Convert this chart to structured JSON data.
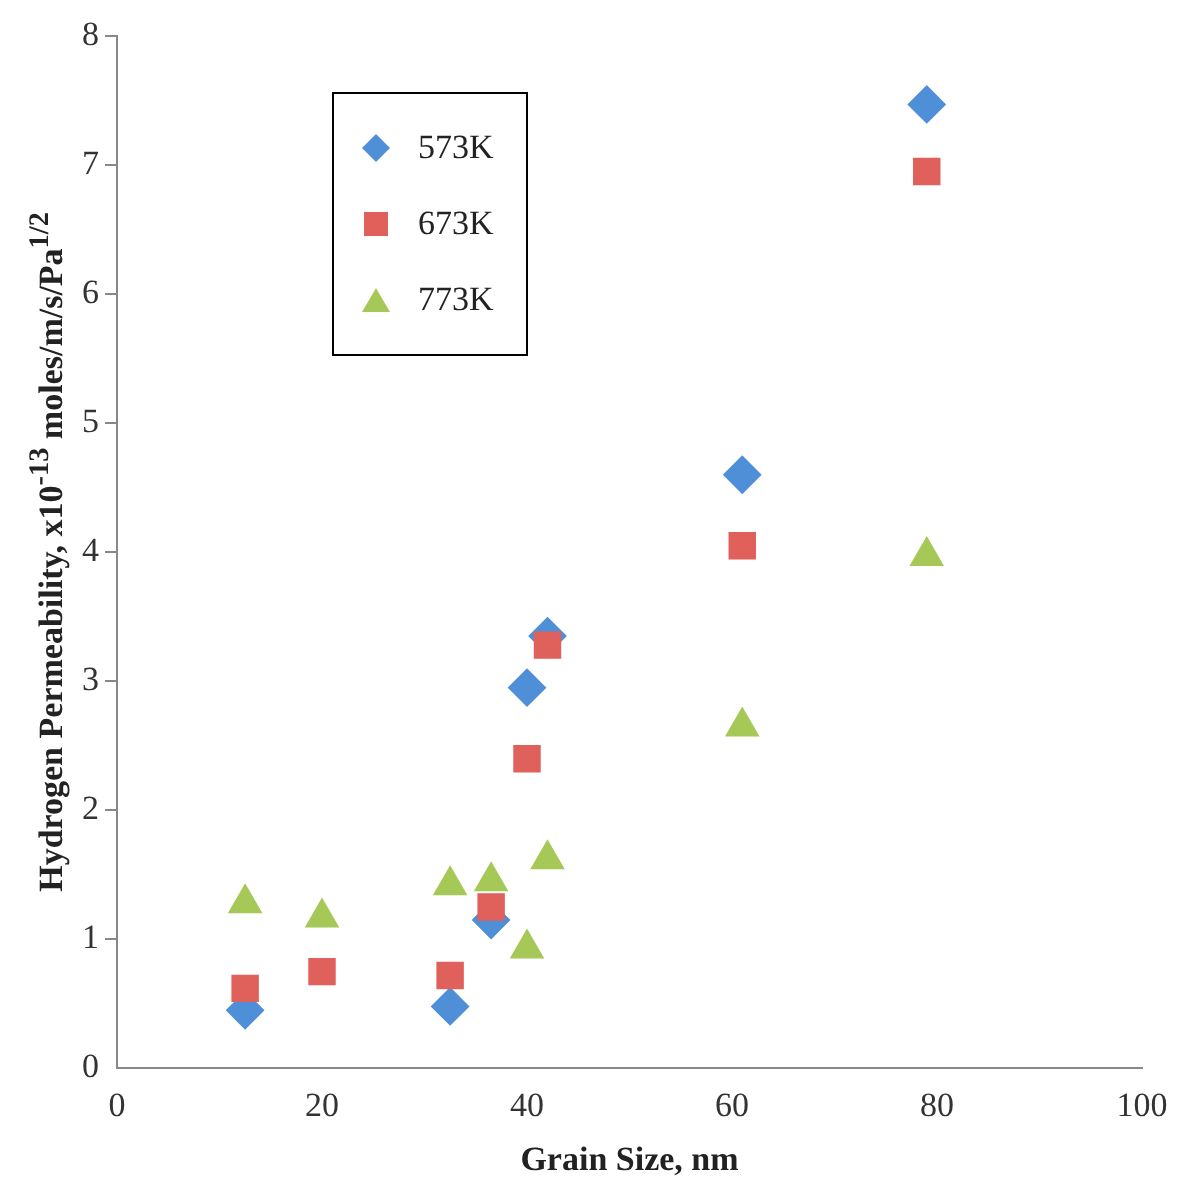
{
  "chart_data": {
    "type": "scatter",
    "xlabel": "Grain Size, nm",
    "ylabel": "Hydrogen Permeability,  x10$^{-13}$ moles/m/s/Pa$^{1/2}$",
    "x": [
      12.5,
      20,
      32.5,
      36.5,
      40,
      42,
      61,
      79
    ],
    "xlim": [
      0,
      100
    ],
    "xticks": [
      0,
      20,
      40,
      60,
      80,
      100
    ],
    "ylim": [
      0,
      8
    ],
    "yticks": [
      0,
      1,
      2,
      3,
      4,
      5,
      6,
      7,
      8
    ],
    "grid": false,
    "legend": "top left",
    "series": [
      {
        "name": "573K",
        "color": "#4f8fd8",
        "marker": "diamond",
        "values": [
          0.45,
          null,
          0.48,
          1.15,
          2.95,
          3.35,
          4.6,
          7.47
        ]
      },
      {
        "name": "673K",
        "color": "#e0605c",
        "marker": "square",
        "values": [
          0.62,
          0.75,
          0.72,
          1.25,
          2.4,
          3.28,
          4.05,
          6.95
        ]
      },
      {
        "name": "773K",
        "color": "#a6c856",
        "marker": "triangle",
        "values": [
          1.28,
          1.17,
          1.42,
          1.45,
          0.93,
          1.62,
          2.65,
          3.97
        ]
      }
    ]
  }
}
